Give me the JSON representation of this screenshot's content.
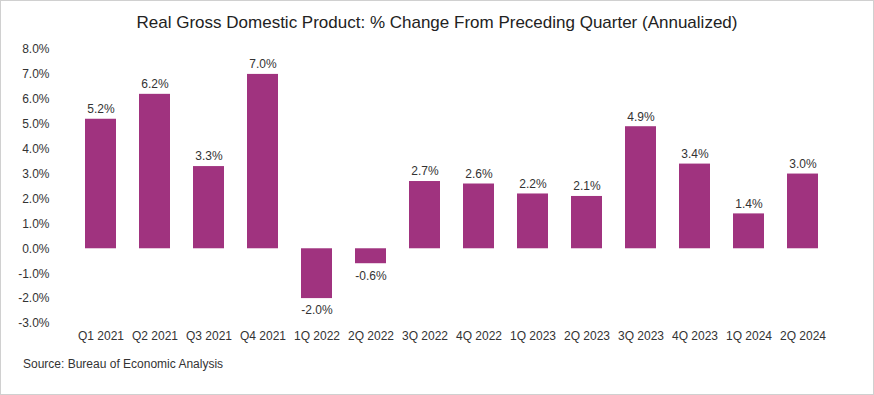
{
  "chart_data": {
    "type": "bar",
    "title": "Real Gross Domestic Product: % Change From Preceding Quarter (Annualized)",
    "caption": "Source: Bureau of Economic Analysis",
    "categories": [
      "Q1 2021",
      "Q2 2021",
      "Q3 2021",
      "Q4 2021",
      "1Q 2022",
      "2Q 2022",
      "3Q 2022",
      "4Q 2022",
      "1Q 2023",
      "2Q 2023",
      "3Q 2023",
      "4Q 2023",
      "1Q 2024",
      "2Q 2024"
    ],
    "values": [
      5.2,
      6.2,
      3.3,
      7.0,
      -2.0,
      -0.6,
      2.7,
      2.6,
      2.2,
      2.1,
      4.9,
      3.4,
      1.4,
      3.0
    ],
    "value_labels": [
      "5.2%",
      "6.2%",
      "3.3%",
      "7.0%",
      "-2.0%",
      "-0.6%",
      "2.7%",
      "2.6%",
      "2.2%",
      "2.1%",
      "4.9%",
      "3.4%",
      "1.4%",
      "3.0%"
    ],
    "color": "#a0337f",
    "ylim": [
      -3,
      8
    ],
    "yticks": [
      {
        "value": -3,
        "label": "-3.0%"
      },
      {
        "value": -2,
        "label": "-2.0%"
      },
      {
        "value": -1,
        "label": "-1.0%"
      },
      {
        "value": 0,
        "label": "0.0%"
      },
      {
        "value": 1,
        "label": "1.0%"
      },
      {
        "value": 2,
        "label": "2.0%"
      },
      {
        "value": 3,
        "label": "3.0%"
      },
      {
        "value": 4,
        "label": "4.0%"
      },
      {
        "value": 5,
        "label": "5.0%"
      },
      {
        "value": 6,
        "label": "6.0%"
      },
      {
        "value": 7,
        "label": "7.0%"
      },
      {
        "value": 8,
        "label": "8.0%"
      }
    ],
    "grid": false,
    "data_labels": true
  }
}
